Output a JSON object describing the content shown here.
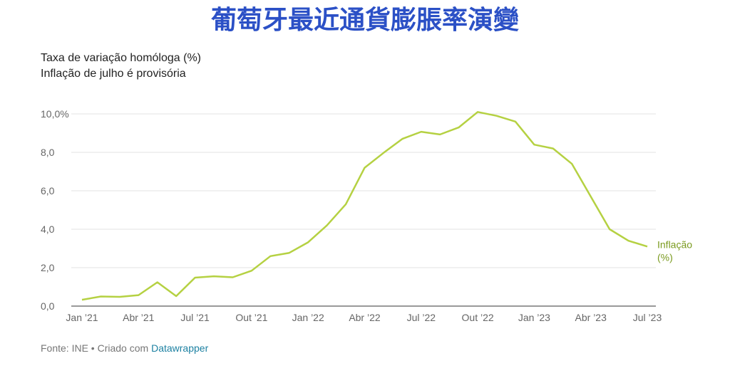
{
  "chart_data": {
    "type": "line",
    "title": "葡萄牙最近通貨膨脹率演變",
    "subtitle": [
      "Taxa de variação homóloga (%)",
      "Inflação de julho é provisória"
    ],
    "source": "Fonte: INE • Criado com",
    "source_link": "Datawrapper",
    "categories": [
      "Jan ’21",
      null,
      null,
      "Abr ’21",
      null,
      null,
      "Jul ’21",
      null,
      null,
      "Out ’21",
      null,
      null,
      "Jan ’22",
      null,
      null,
      "Abr ’22",
      null,
      null,
      "Jul ’22",
      null,
      null,
      "Out ’22",
      null,
      null,
      "Jan ’23",
      null,
      null,
      "Abr ’23",
      null,
      null,
      "Jul ’23"
    ],
    "series": [
      {
        "name": "Inflação (%)",
        "color": "#b5d142",
        "label_color": "#7a9a1e",
        "values": [
          0.33,
          0.5,
          0.48,
          0.57,
          1.24,
          0.52,
          1.48,
          1.55,
          1.5,
          1.84,
          2.6,
          2.77,
          3.32,
          4.2,
          5.3,
          7.2,
          7.97,
          8.7,
          9.07,
          8.93,
          9.3,
          10.1,
          9.9,
          9.6,
          8.4,
          8.2,
          7.4,
          5.7,
          4.0,
          3.4,
          3.1
        ]
      }
    ],
    "ylim": [
      0,
      10
    ],
    "yticks": [
      {
        "value": 0,
        "label": "0,0"
      },
      {
        "value": 2,
        "label": "2,0"
      },
      {
        "value": 4,
        "label": "4,0"
      },
      {
        "value": 6,
        "label": "6,0"
      },
      {
        "value": 8,
        "label": "8,0"
      },
      {
        "value": 10,
        "label": "10,0%"
      }
    ],
    "grid": true
  }
}
